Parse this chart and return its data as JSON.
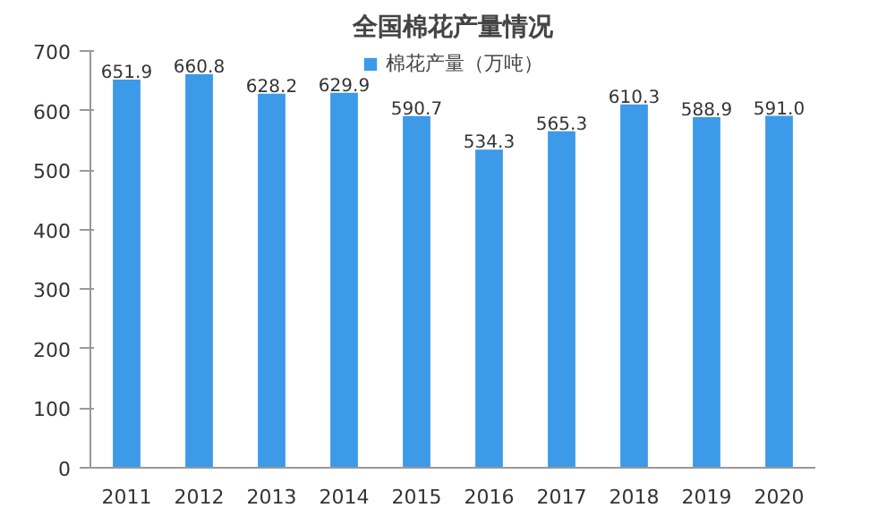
{
  "chart_data": {
    "type": "bar",
    "title": "全国棉花产量情况",
    "categories": [
      "2011",
      "2012",
      "2013",
      "2014",
      "2015",
      "2016",
      "2017",
      "2018",
      "2019",
      "2020"
    ],
    "series": [
      {
        "name": "棉花产量（万吨）",
        "color": "#3d9ae8",
        "values": [
          651.9,
          660.8,
          628.2,
          629.9,
          590.7,
          534.3,
          565.3,
          610.3,
          588.9,
          591.0
        ]
      }
    ],
    "value_labels": [
      "651.9",
      "660.8",
      "628.2",
      "629.9",
      "590.7",
      "534.3",
      "565.3",
      "610.3",
      "588.9",
      "591.0"
    ],
    "ylim": [
      0,
      700
    ],
    "yticks": [
      0,
      100,
      200,
      300,
      400,
      500,
      600,
      700
    ],
    "grid": false,
    "legend": "top"
  }
}
